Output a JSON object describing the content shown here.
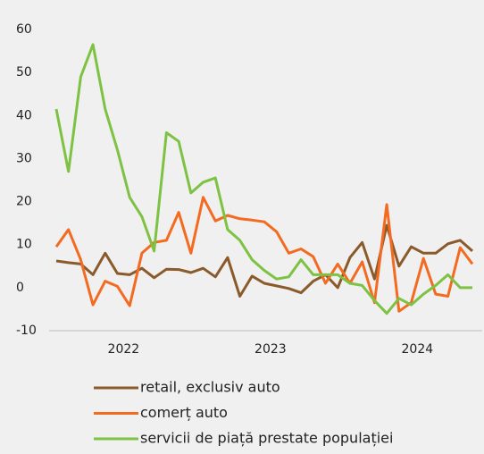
{
  "chart_data": {
    "type": "line",
    "categories": [
      null,
      null,
      null,
      null,
      null,
      "2022",
      null,
      null,
      null,
      null,
      null,
      null,
      null,
      null,
      null,
      null,
      null,
      "2023",
      null,
      null,
      null,
      null,
      null,
      null,
      null,
      null,
      null,
      null,
      null,
      "2024",
      null,
      null,
      null,
      null,
      null
    ],
    "series": [
      {
        "name": "retail, exclusiv auto",
        "color": "#8b5a2b",
        "values": [
          6.2,
          5.8,
          5.5,
          3,
          8,
          3.3,
          3,
          4.5,
          2.3,
          4.3,
          4.2,
          3.5,
          4.5,
          2.5,
          7,
          -2,
          2.7,
          1,
          0.4,
          -0.2,
          -1.2,
          1.5,
          3,
          0,
          7,
          10.5,
          2,
          14.5,
          5,
          9.5,
          8,
          8,
          10.2,
          11,
          8.5
        ]
      },
      {
        "name": "comerț auto",
        "color": "#f26b21",
        "values": [
          9.5,
          13.5,
          6.5,
          -4,
          1.5,
          0.3,
          -4.2,
          8,
          10.5,
          11,
          17.5,
          8,
          21,
          15.5,
          16.8,
          16,
          15.7,
          15.3,
          13,
          8,
          9,
          7.2,
          1,
          5.5,
          1,
          6,
          -3.5,
          19.3,
          -5.5,
          -3.5,
          6.8,
          -1.5,
          -2,
          9.3,
          5.5
        ]
      },
      {
        "name": "servicii de piață prestate populației",
        "color": "#7dc242",
        "values": [
          41.5,
          27,
          49,
          56.5,
          41.5,
          32,
          21,
          16.5,
          8.5,
          36,
          34,
          22,
          24.5,
          25.5,
          13.5,
          11,
          6.5,
          4,
          2,
          2.5,
          6.5,
          3,
          3,
          3,
          1,
          0.5,
          -3,
          -6,
          -2.5,
          -4,
          -1.5,
          0.5,
          3,
          0,
          0
        ]
      }
    ],
    "ylim": [
      -10,
      60
    ],
    "yticks": [
      -10,
      0,
      10,
      20,
      30,
      40,
      50,
      60
    ]
  }
}
